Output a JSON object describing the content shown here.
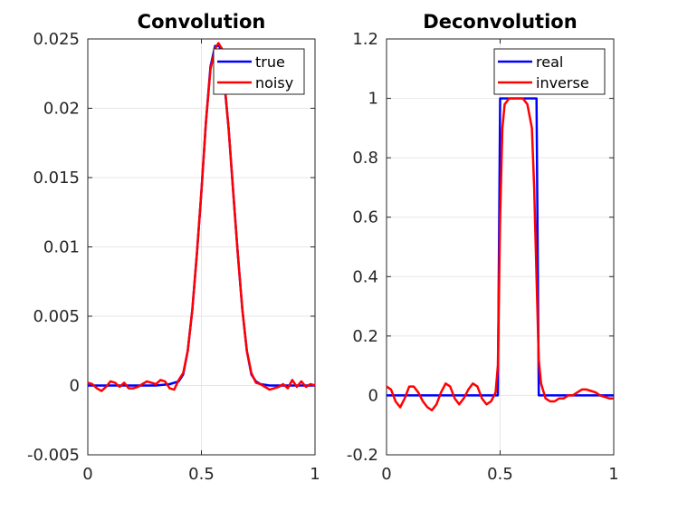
{
  "chart_data": [
    {
      "type": "line",
      "title": "Convolution",
      "xlabel": "",
      "ylabel": "",
      "xlim": [
        0,
        1
      ],
      "ylim": [
        -0.005,
        0.025
      ],
      "xticks": [
        0,
        0.5,
        1
      ],
      "xtick_labels": [
        "0",
        "0.5",
        "1"
      ],
      "yticks": [
        -0.005,
        0,
        0.005,
        0.01,
        0.015,
        0.02,
        0.025
      ],
      "ytick_labels": [
        "-0.005",
        "0",
        "0.005",
        "0.01",
        "0.015",
        "0.02",
        "0.025"
      ],
      "grid": true,
      "legend_position": "top-right",
      "series": [
        {
          "name": "true",
          "color": "#0000ff",
          "x": [
            0,
            0.3,
            0.36,
            0.4,
            0.42,
            0.44,
            0.46,
            0.48,
            0.5,
            0.52,
            0.54,
            0.56,
            0.58,
            0.6,
            0.62,
            0.64,
            0.66,
            0.68,
            0.7,
            0.72,
            0.74,
            0.76,
            0.8,
            1.0
          ],
          "y": [
            0,
            0,
            0.0001,
            0.0003,
            0.0008,
            0.0025,
            0.0055,
            0.0095,
            0.014,
            0.019,
            0.023,
            0.0245,
            0.0245,
            0.022,
            0.0185,
            0.014,
            0.0095,
            0.0055,
            0.0025,
            0.0008,
            0.0003,
            0.0001,
            0,
            0
          ]
        },
        {
          "name": "noisy",
          "color": "#ff0000",
          "x": [
            0,
            0.02,
            0.04,
            0.06,
            0.08,
            0.1,
            0.12,
            0.14,
            0.16,
            0.18,
            0.2,
            0.22,
            0.24,
            0.26,
            0.28,
            0.3,
            0.32,
            0.34,
            0.36,
            0.38,
            0.4,
            0.42,
            0.44,
            0.46,
            0.48,
            0.5,
            0.52,
            0.54,
            0.56,
            0.575,
            0.59,
            0.6,
            0.62,
            0.64,
            0.66,
            0.68,
            0.7,
            0.72,
            0.74,
            0.76,
            0.78,
            0.8,
            0.82,
            0.84,
            0.86,
            0.88,
            0.9,
            0.92,
            0.94,
            0.96,
            0.98,
            1.0
          ],
          "y": [
            0.0002,
            0.0001,
            -0.0002,
            -0.0004,
            -0.0001,
            0.0003,
            0.0002,
            -0.0001,
            0.0002,
            -0.0002,
            -0.0002,
            -0.0001,
            0.0001,
            0.0003,
            0.0002,
            0.0001,
            0.0004,
            0.0003,
            -0.0002,
            -0.0003,
            0.0004,
            0.0009,
            0.0025,
            0.0055,
            0.0095,
            0.014,
            0.019,
            0.0228,
            0.0243,
            0.0247,
            0.0243,
            0.0222,
            0.0185,
            0.014,
            0.0095,
            0.0055,
            0.0025,
            0.0009,
            0.0002,
            0.0001,
            -0.0001,
            -0.0003,
            -0.0002,
            -0.0001,
            0.0001,
            -0.0002,
            0.0004,
            -0.0001,
            0.0003,
            -0.0001,
            0.0001,
            0
          ]
        }
      ]
    },
    {
      "type": "line",
      "title": "Deconvolution",
      "xlabel": "",
      "ylabel": "",
      "xlim": [
        0,
        1
      ],
      "ylim": [
        -0.2,
        1.2
      ],
      "xticks": [
        0,
        0.5,
        1
      ],
      "xtick_labels": [
        "0",
        "0.5",
        "1"
      ],
      "yticks": [
        -0.2,
        0,
        0.2,
        0.4,
        0.6,
        0.8,
        1,
        1.2
      ],
      "ytick_labels": [
        "-0.2",
        "0",
        "0.2",
        "0.4",
        "0.6",
        "0.8",
        "1",
        "1.2"
      ],
      "grid": true,
      "legend_position": "top-right",
      "series": [
        {
          "name": "real",
          "color": "#0000ff",
          "x": [
            0,
            0.49,
            0.5,
            0.66,
            0.67,
            1.0
          ],
          "y": [
            0,
            0,
            1,
            1,
            0,
            0
          ]
        },
        {
          "name": "inverse",
          "color": "#ff0000",
          "x": [
            0,
            0.02,
            0.04,
            0.06,
            0.08,
            0.1,
            0.12,
            0.14,
            0.16,
            0.18,
            0.2,
            0.22,
            0.24,
            0.26,
            0.28,
            0.3,
            0.32,
            0.34,
            0.36,
            0.38,
            0.4,
            0.42,
            0.44,
            0.46,
            0.48,
            0.49,
            0.5,
            0.51,
            0.52,
            0.54,
            0.56,
            0.58,
            0.6,
            0.62,
            0.64,
            0.65,
            0.66,
            0.67,
            0.68,
            0.7,
            0.72,
            0.74,
            0.76,
            0.78,
            0.8,
            0.82,
            0.84,
            0.86,
            0.88,
            0.9,
            0.92,
            0.94,
            0.96,
            0.98,
            1.0
          ],
          "y": [
            0.03,
            0.02,
            -0.02,
            -0.04,
            -0.01,
            0.03,
            0.03,
            0.01,
            -0.02,
            -0.04,
            -0.05,
            -0.03,
            0.01,
            0.04,
            0.03,
            -0.01,
            -0.03,
            -0.01,
            0.02,
            0.04,
            0.03,
            -0.01,
            -0.03,
            -0.02,
            0.01,
            0.1,
            0.6,
            0.9,
            0.98,
            1.0,
            1.0,
            1.0,
            1.0,
            0.98,
            0.9,
            0.7,
            0.4,
            0.12,
            0.04,
            -0.01,
            -0.02,
            -0.02,
            -0.01,
            -0.01,
            0.0,
            0.0,
            0.01,
            0.02,
            0.02,
            0.015,
            0.01,
            0.0,
            -0.005,
            -0.01,
            -0.01
          ]
        }
      ]
    }
  ]
}
